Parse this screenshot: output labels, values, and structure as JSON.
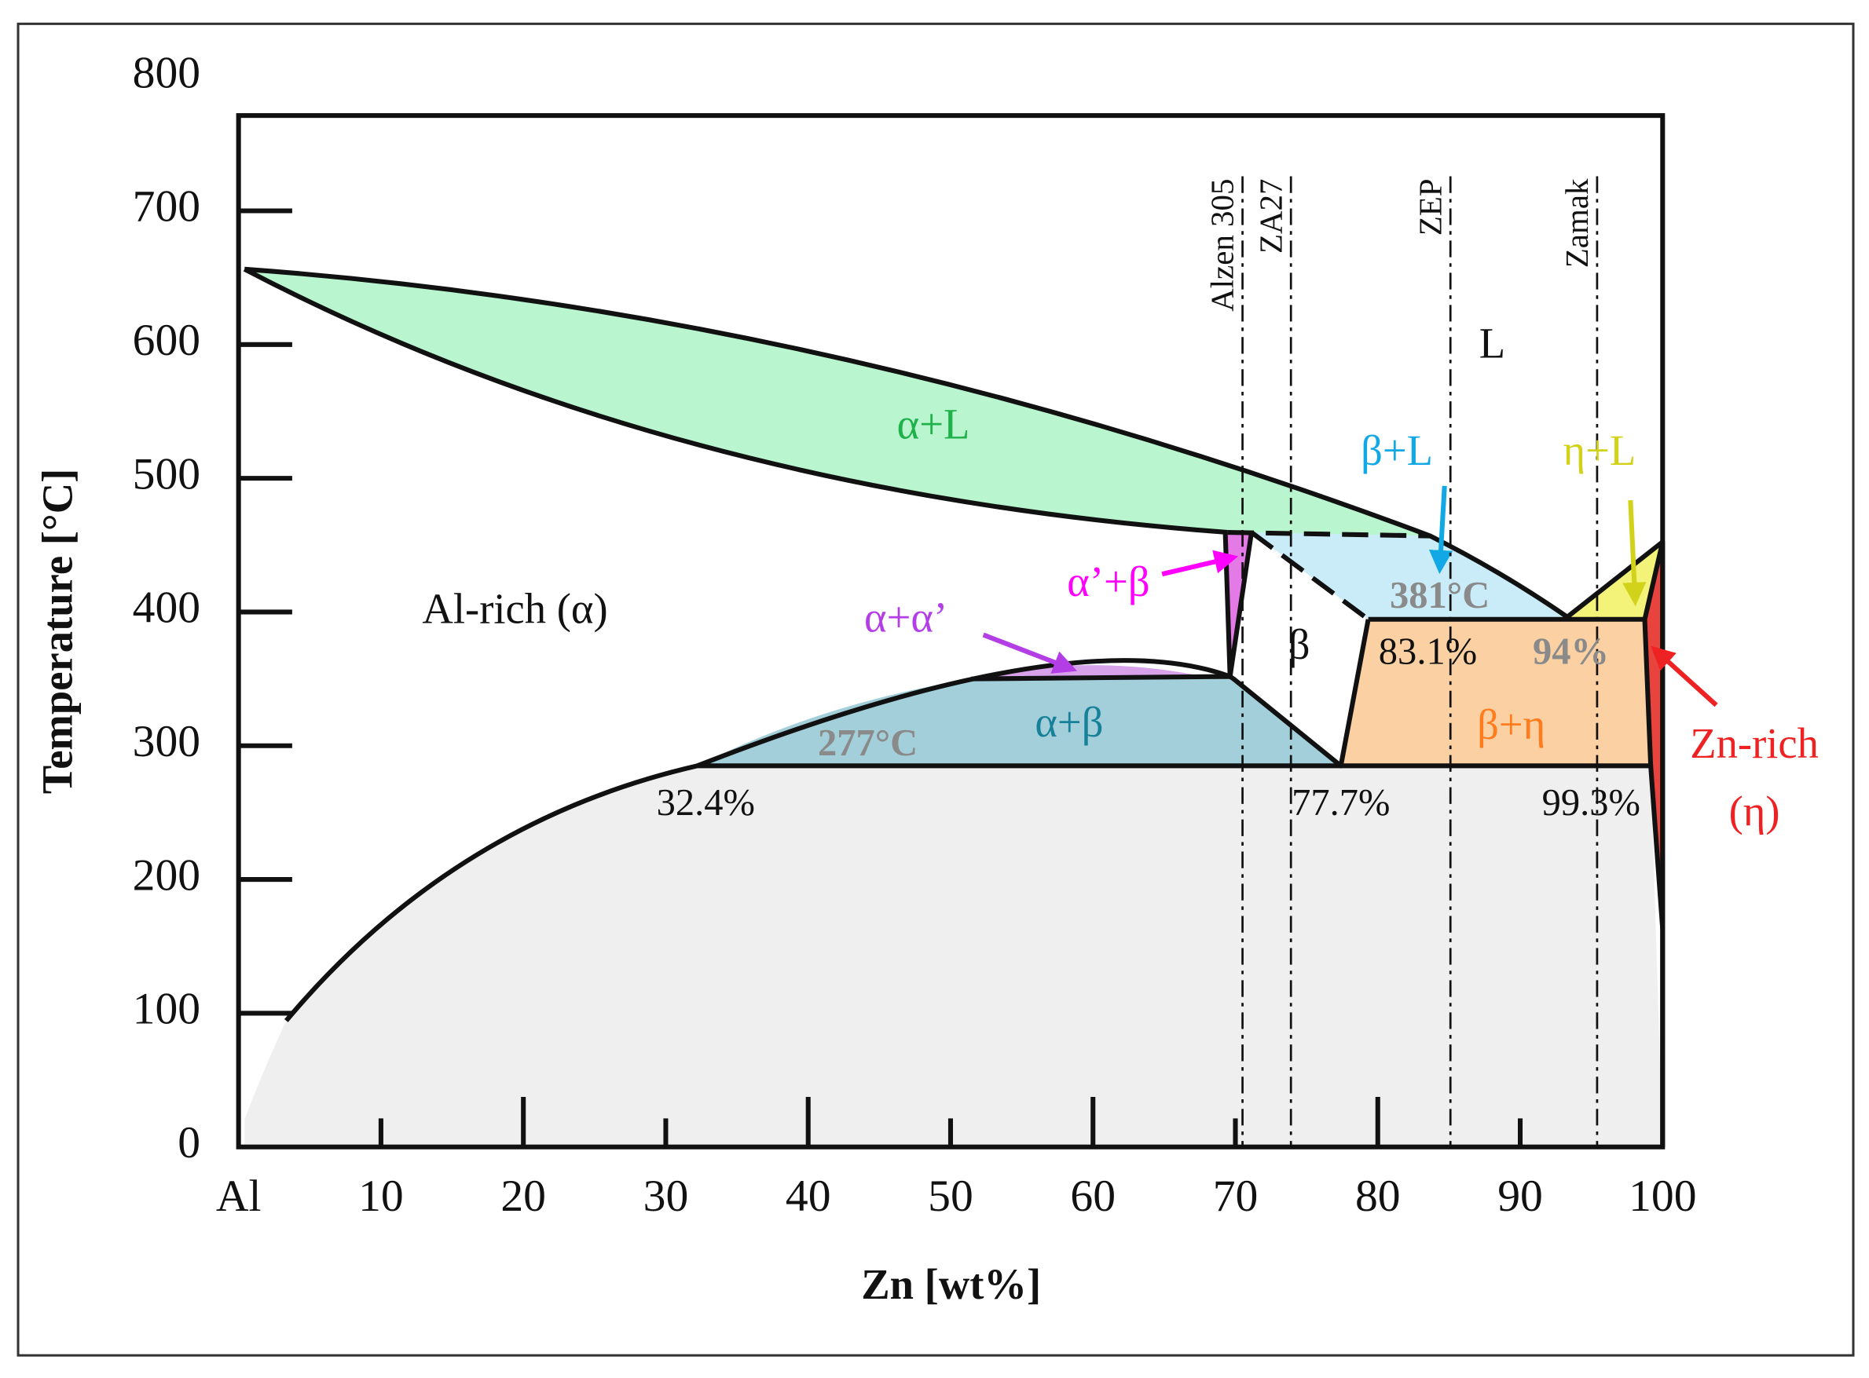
{
  "chart_data": {
    "type": "phase-diagram",
    "x_label": "Zn [wt%]",
    "y_label": "Temperature [°C]",
    "xlim": [
      0,
      100
    ],
    "ylim": [
      0,
      800
    ],
    "xticks": [
      {
        "value": 0,
        "label": "Al"
      },
      10,
      20,
      30,
      40,
      50,
      60,
      70,
      80,
      90,
      100
    ],
    "yticks": [
      0,
      100,
      200,
      300,
      400,
      500,
      600,
      700,
      800
    ],
    "alloys": [
      {
        "name": "Alzen 305",
        "x": 70.5
      },
      {
        "name": "ZA27",
        "x": 73.9
      },
      {
        "name": "ZEP",
        "x": 85.1
      },
      {
        "name": "Zamak",
        "x": 95.4
      }
    ],
    "regions": [
      {
        "label": "α+L",
        "color": "#1fb14a"
      },
      {
        "label": "L",
        "color": "#111111"
      },
      {
        "label": "Al-rich (α)",
        "color": "#111111"
      },
      {
        "label": "β+L",
        "color": "#12a8e6"
      },
      {
        "label": "η+L",
        "color": "#d2d21a"
      },
      {
        "label": "α’+β",
        "color": "#ff00ff"
      },
      {
        "label": "α+α’",
        "color": "#b43ee6"
      },
      {
        "label": "β",
        "color": "#111111"
      },
      {
        "label": "α+β",
        "color": "#17819a"
      },
      {
        "label": "β+η",
        "color": "#ff7b1c"
      },
      {
        "label": "Zn-rich",
        "color": "#ee2222"
      },
      {
        "label": "(η)",
        "color": "#ee2222"
      }
    ],
    "annotations": [
      {
        "text": "381°C",
        "color": "#8a8a8a"
      },
      {
        "text": "277°C",
        "color": "#8a8a8a"
      },
      {
        "text": "83.1%",
        "color": "#111111"
      },
      {
        "text": "94%",
        "color": "#8a8a8a"
      },
      {
        "text": "32.4%",
        "color": "#111111"
      },
      {
        "text": "77.7%",
        "color": "#111111"
      },
      {
        "text": "99.3%",
        "color": "#111111"
      }
    ]
  }
}
